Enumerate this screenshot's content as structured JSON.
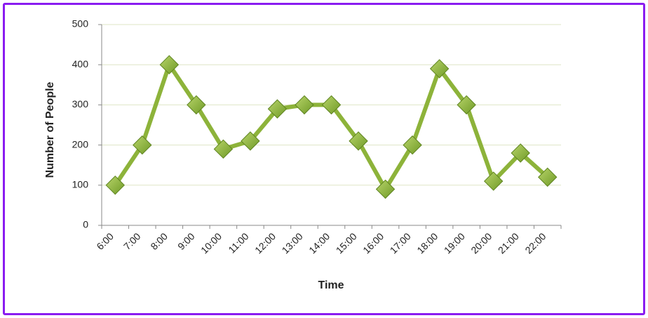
{
  "chart_data": {
    "type": "line",
    "x_label": "Time",
    "y_label": "Number of People",
    "categories": [
      "6:00",
      "7:00",
      "8:00",
      "9:00",
      "10:00",
      "11:00",
      "12:00",
      "13:00",
      "14:00",
      "15:00",
      "16:00",
      "17:00",
      "18:00",
      "19:00",
      "20:00",
      "21:00",
      "22:00"
    ],
    "series": [
      {
        "name": "Number of People",
        "color": "#8db33a",
        "values": [
          100,
          200,
          400,
          300,
          190,
          210,
          290,
          300,
          300,
          210,
          90,
          200,
          390,
          300,
          110,
          180,
          120
        ]
      }
    ],
    "ylim": [
      0,
      500
    ],
    "yticks": [
      0,
      100,
      200,
      300,
      400,
      500
    ],
    "grid": true
  }
}
